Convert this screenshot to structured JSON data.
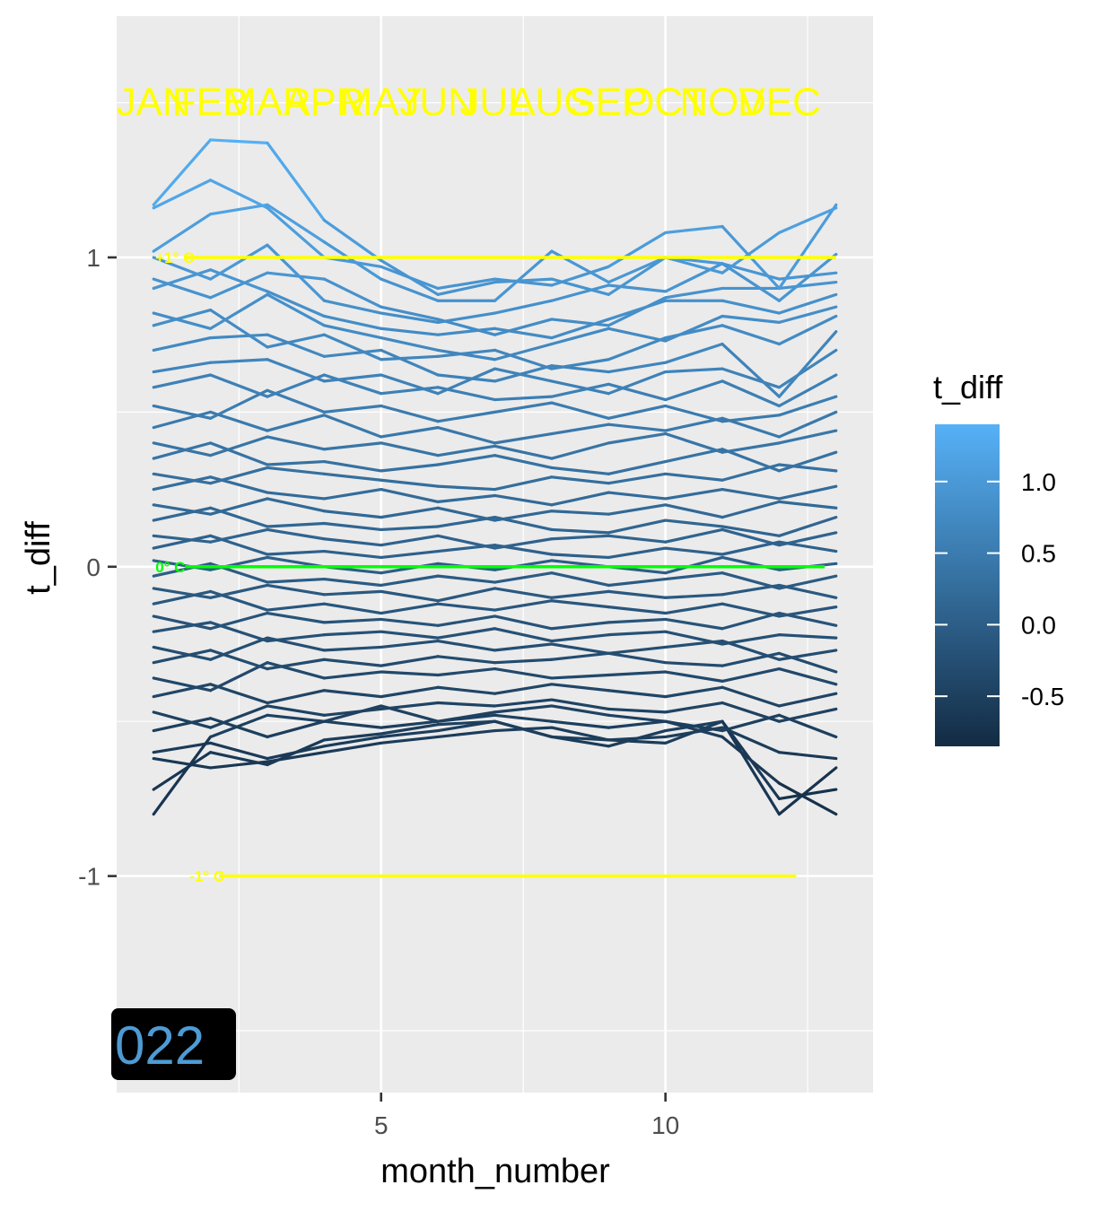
{
  "chart_data": {
    "type": "line",
    "xlabel": "month_number",
    "ylabel": "t_diff",
    "xlim": [
      0.35,
      13.65
    ],
    "ylim": [
      -1.7,
      1.78
    ],
    "x_ticks": [
      5,
      10
    ],
    "y_ticks": [
      -1,
      0,
      1
    ],
    "grid": true,
    "month_labels": [
      "JAN",
      "FEB",
      "MAR",
      "APR",
      "MAY",
      "JUN",
      "JUL",
      "AUG",
      "SEP",
      "OCT",
      "NOV",
      "DEC"
    ],
    "month_label_y": 1.5,
    "reference_lines": [
      {
        "label": "+1° C",
        "y": 1,
        "x_start": 1.0,
        "x_end": 13.0,
        "color": "#ffff00"
      },
      {
        "label": "0° C",
        "y": 0,
        "x_start": 1.0,
        "x_end": 12.8,
        "color": "#00ff00"
      },
      {
        "label": "-1° C",
        "y": -1,
        "x_start": 1.6,
        "x_end": 12.3,
        "color": "#ffff00"
      }
    ],
    "year_label": "022",
    "legend": {
      "title": "t_diff",
      "position": "right",
      "ticks": [
        "1.0",
        "0.5",
        "0.0",
        "-0.5"
      ],
      "tick_values": [
        1.0,
        0.5,
        0.0,
        -0.5
      ],
      "range": [
        -0.85,
        1.4
      ],
      "color_low": "#132b43",
      "color_high": "#56b1f7"
    },
    "x": [
      1,
      2,
      3,
      4,
      5,
      6,
      7,
      8,
      9,
      10,
      11,
      12,
      13
    ],
    "series": [
      {
        "values": [
          1.17,
          1.38,
          1.37,
          1.12,
          0.99,
          0.88,
          0.92,
          0.93,
          0.88,
          1.0,
          0.95,
          1.08,
          1.16
        ]
      },
      {
        "values": [
          1.16,
          1.25,
          1.16,
          1.0,
          0.97,
          0.9,
          0.93,
          0.91,
          0.97,
          1.08,
          1.1,
          0.9,
          1.17
        ]
      },
      {
        "values": [
          1.02,
          1.14,
          1.17,
          1.05,
          0.93,
          0.86,
          0.86,
          1.02,
          0.92,
          1.0,
          0.98,
          0.86,
          1.01
        ]
      },
      {
        "values": [
          1.0,
          0.93,
          1.04,
          0.86,
          0.82,
          0.79,
          0.82,
          0.86,
          0.91,
          0.89,
          0.98,
          0.93,
          0.95
        ]
      },
      {
        "values": [
          0.93,
          0.87,
          0.95,
          0.93,
          0.84,
          0.8,
          0.75,
          0.8,
          0.78,
          0.87,
          0.9,
          0.9,
          0.92
        ]
      },
      {
        "values": [
          0.9,
          0.96,
          0.89,
          0.81,
          0.77,
          0.75,
          0.77,
          0.74,
          0.8,
          0.86,
          0.86,
          0.82,
          0.88
        ]
      },
      {
        "values": [
          0.82,
          0.77,
          0.88,
          0.78,
          0.74,
          0.7,
          0.67,
          0.72,
          0.77,
          0.73,
          0.81,
          0.79,
          0.84
        ]
      },
      {
        "values": [
          0.78,
          0.83,
          0.71,
          0.75,
          0.67,
          0.68,
          0.7,
          0.64,
          0.67,
          0.74,
          0.78,
          0.72,
          0.81
        ]
      },
      {
        "values": [
          0.7,
          0.74,
          0.75,
          0.68,
          0.7,
          0.62,
          0.6,
          0.65,
          0.63,
          0.66,
          0.72,
          0.55,
          0.76
        ]
      },
      {
        "values": [
          0.63,
          0.66,
          0.67,
          0.6,
          0.62,
          0.56,
          0.64,
          0.6,
          0.56,
          0.63,
          0.64,
          0.58,
          0.7
        ]
      },
      {
        "values": [
          0.58,
          0.62,
          0.55,
          0.62,
          0.56,
          0.58,
          0.54,
          0.55,
          0.59,
          0.54,
          0.6,
          0.52,
          0.62
        ]
      },
      {
        "values": [
          0.52,
          0.48,
          0.57,
          0.5,
          0.52,
          0.47,
          0.5,
          0.53,
          0.48,
          0.52,
          0.47,
          0.49,
          0.55
        ]
      },
      {
        "values": [
          0.45,
          0.5,
          0.44,
          0.49,
          0.42,
          0.45,
          0.4,
          0.43,
          0.46,
          0.44,
          0.48,
          0.42,
          0.5
        ]
      },
      {
        "values": [
          0.4,
          0.36,
          0.42,
          0.38,
          0.4,
          0.36,
          0.39,
          0.35,
          0.4,
          0.43,
          0.37,
          0.4,
          0.44
        ]
      },
      {
        "values": [
          0.35,
          0.4,
          0.33,
          0.34,
          0.31,
          0.33,
          0.36,
          0.32,
          0.3,
          0.34,
          0.38,
          0.31,
          0.37
        ]
      },
      {
        "values": [
          0.3,
          0.27,
          0.32,
          0.3,
          0.28,
          0.26,
          0.25,
          0.29,
          0.27,
          0.3,
          0.28,
          0.33,
          0.31
        ]
      },
      {
        "values": [
          0.25,
          0.29,
          0.24,
          0.22,
          0.25,
          0.21,
          0.23,
          0.2,
          0.24,
          0.22,
          0.25,
          0.22,
          0.26
        ]
      },
      {
        "values": [
          0.2,
          0.17,
          0.22,
          0.18,
          0.16,
          0.19,
          0.15,
          0.18,
          0.17,
          0.2,
          0.16,
          0.21,
          0.19
        ]
      },
      {
        "values": [
          0.15,
          0.19,
          0.13,
          0.14,
          0.12,
          0.13,
          0.16,
          0.12,
          0.11,
          0.15,
          0.13,
          0.1,
          0.16
        ]
      },
      {
        "values": [
          0.1,
          0.08,
          0.12,
          0.09,
          0.07,
          0.1,
          0.06,
          0.09,
          0.1,
          0.08,
          0.12,
          0.07,
          0.11
        ]
      },
      {
        "values": [
          0.06,
          0.1,
          0.04,
          0.05,
          0.03,
          0.05,
          0.07,
          0.04,
          0.03,
          0.06,
          0.04,
          0.08,
          0.05
        ]
      },
      {
        "values": [
          0.02,
          -0.01,
          0.03,
          0.0,
          -0.02,
          0.01,
          -0.01,
          0.02,
          0.0,
          -0.02,
          0.03,
          -0.01,
          0.01
        ]
      },
      {
        "values": [
          -0.03,
          0.01,
          -0.05,
          -0.04,
          -0.06,
          -0.03,
          -0.05,
          -0.02,
          -0.06,
          -0.04,
          -0.02,
          -0.07,
          -0.03
        ]
      },
      {
        "values": [
          -0.07,
          -0.1,
          -0.06,
          -0.09,
          -0.08,
          -0.11,
          -0.07,
          -0.1,
          -0.08,
          -0.1,
          -0.09,
          -0.06,
          -0.1
        ]
      },
      {
        "values": [
          -0.12,
          -0.08,
          -0.14,
          -0.12,
          -0.15,
          -0.12,
          -0.14,
          -0.11,
          -0.13,
          -0.15,
          -0.12,
          -0.16,
          -0.13
        ]
      },
      {
        "values": [
          -0.16,
          -0.2,
          -0.15,
          -0.18,
          -0.17,
          -0.19,
          -0.16,
          -0.2,
          -0.18,
          -0.17,
          -0.2,
          -0.15,
          -0.19
        ]
      },
      {
        "values": [
          -0.21,
          -0.18,
          -0.24,
          -0.22,
          -0.21,
          -0.23,
          -0.2,
          -0.24,
          -0.22,
          -0.21,
          -0.25,
          -0.22,
          -0.23
        ]
      },
      {
        "values": [
          -0.26,
          -0.3,
          -0.23,
          -0.27,
          -0.26,
          -0.24,
          -0.27,
          -0.25,
          -0.28,
          -0.26,
          -0.24,
          -0.3,
          -0.27
        ]
      },
      {
        "values": [
          -0.31,
          -0.27,
          -0.33,
          -0.3,
          -0.32,
          -0.29,
          -0.31,
          -0.3,
          -0.28,
          -0.31,
          -0.32,
          -0.28,
          -0.34
        ]
      },
      {
        "values": [
          -0.36,
          -0.4,
          -0.31,
          -0.36,
          -0.34,
          -0.35,
          -0.33,
          -0.36,
          -0.35,
          -0.34,
          -0.37,
          -0.33,
          -0.38
        ]
      },
      {
        "values": [
          -0.42,
          -0.38,
          -0.44,
          -0.4,
          -0.42,
          -0.39,
          -0.41,
          -0.38,
          -0.4,
          -0.42,
          -0.39,
          -0.45,
          -0.41
        ]
      },
      {
        "values": [
          -0.47,
          -0.52,
          -0.45,
          -0.48,
          -0.46,
          -0.44,
          -0.45,
          -0.43,
          -0.46,
          -0.47,
          -0.44,
          -0.5,
          -0.46
        ]
      },
      {
        "values": [
          -0.53,
          -0.49,
          -0.55,
          -0.5,
          -0.52,
          -0.5,
          -0.48,
          -0.5,
          -0.52,
          -0.5,
          -0.53,
          -0.48,
          -0.55
        ]
      },
      {
        "values": [
          -0.6,
          -0.57,
          -0.62,
          -0.58,
          -0.55,
          -0.53,
          -0.5,
          -0.55,
          -0.56,
          -0.55,
          -0.52,
          -0.6,
          -0.62
        ]
      },
      {
        "values": [
          -0.62,
          -0.65,
          -0.63,
          -0.6,
          -0.57,
          -0.55,
          -0.53,
          -0.52,
          -0.56,
          -0.57,
          -0.5,
          -0.75,
          -0.72
        ]
      },
      {
        "values": [
          -0.72,
          -0.6,
          -0.64,
          -0.56,
          -0.54,
          -0.51,
          -0.5,
          -0.55,
          -0.58,
          -0.53,
          -0.5,
          -0.8,
          -0.65
        ]
      },
      {
        "values": [
          -0.8,
          -0.55,
          -0.48,
          -0.5,
          -0.45,
          -0.5,
          -0.47,
          -0.45,
          -0.48,
          -0.5,
          -0.55,
          -0.7,
          -0.8
        ]
      }
    ]
  }
}
